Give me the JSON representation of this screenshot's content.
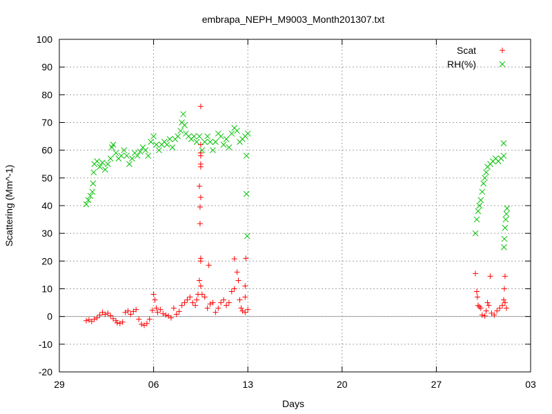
{
  "chart_data": {
    "type": "scatter",
    "title": "embrapa_NEPH_M9003_Month201307.txt",
    "xlabel": "Days",
    "ylabel": "Scattering (Mm^-1)",
    "xlim": [
      -2,
      32
    ],
    "ylim": [
      -20,
      100
    ],
    "x_ticks": [
      {
        "value": -2,
        "label": "29"
      },
      {
        "value": 5,
        "label": "06"
      },
      {
        "value": 12,
        "label": "13"
      },
      {
        "value": 19,
        "label": "20"
      },
      {
        "value": 26,
        "label": "27"
      },
      {
        "value": 33,
        "label": "03"
      }
    ],
    "y_ticks": [
      -20,
      -10,
      0,
      10,
      20,
      30,
      40,
      50,
      60,
      70,
      80,
      90,
      100
    ],
    "grid": true,
    "legend_position": "top-right",
    "series": [
      {
        "name": "Scat",
        "marker": "+",
        "color": "#ff0000",
        "points": [
          [
            0,
            -1.5
          ],
          [
            0.2,
            -1.2
          ],
          [
            0.4,
            -1.8
          ],
          [
            0.6,
            -1
          ],
          [
            0.8,
            -0.5
          ],
          [
            1.0,
            0.5
          ],
          [
            1.2,
            1.5
          ],
          [
            1.4,
            0.8
          ],
          [
            1.6,
            1.2
          ],
          [
            1.8,
            0.3
          ],
          [
            2.0,
            -0.8
          ],
          [
            2.2,
            -1.5
          ],
          [
            2.3,
            -2.3
          ],
          [
            2.5,
            -2.5
          ],
          [
            2.7,
            -2
          ],
          [
            2.9,
            1.5
          ],
          [
            3.1,
            2
          ],
          [
            3.3,
            0.8
          ],
          [
            3.5,
            1.8
          ],
          [
            3.7,
            2.5
          ],
          [
            3.9,
            -1
          ],
          [
            4.1,
            -2.8
          ],
          [
            4.3,
            -3.2
          ],
          [
            4.5,
            -2.5
          ],
          [
            4.7,
            -1
          ],
          [
            4.9,
            2.2
          ],
          [
            5.0,
            8
          ],
          [
            5.1,
            6
          ],
          [
            5.2,
            3
          ],
          [
            5.3,
            1.5
          ],
          [
            5.5,
            2.5
          ],
          [
            5.7,
            1
          ],
          [
            5.9,
            0.5
          ],
          [
            6.1,
            0.2
          ],
          [
            6.3,
            -0.5
          ],
          [
            6.5,
            3
          ],
          [
            6.7,
            0.8
          ],
          [
            6.9,
            1.8
          ],
          [
            7.1,
            4
          ],
          [
            7.3,
            5
          ],
          [
            7.5,
            6
          ],
          [
            7.7,
            7
          ],
          [
            7.9,
            5
          ],
          [
            8.1,
            4
          ],
          [
            8.2,
            6
          ],
          [
            8.3,
            8
          ],
          [
            8.4,
            13
          ],
          [
            8.5,
            11
          ],
          [
            8.6,
            8
          ],
          [
            8.8,
            7
          ],
          [
            9.0,
            3
          ],
          [
            9.2,
            4.5
          ],
          [
            9.4,
            5
          ],
          [
            9.6,
            1.5
          ],
          [
            9.8,
            3
          ],
          [
            10.0,
            5
          ],
          [
            10.2,
            6
          ],
          [
            10.4,
            4
          ],
          [
            10.6,
            5
          ],
          [
            10.8,
            9
          ],
          [
            11.0,
            10
          ],
          [
            11.2,
            16
          ],
          [
            11.3,
            13
          ],
          [
            11.4,
            6
          ],
          [
            11.5,
            3
          ],
          [
            11.6,
            2
          ],
          [
            11.8,
            1.5
          ],
          [
            12.0,
            2.5
          ],
          [
            8.5,
            75.8
          ],
          [
            8.5,
            62
          ],
          [
            8.5,
            59
          ],
          [
            8.5,
            58
          ],
          [
            8.5,
            55
          ],
          [
            8.5,
            54
          ],
          [
            8.4,
            47
          ],
          [
            8.5,
            43
          ],
          [
            8.45,
            39.5
          ],
          [
            8.45,
            33.5
          ],
          [
            8.5,
            21
          ],
          [
            8.5,
            20
          ],
          [
            9.1,
            18.5
          ],
          [
            11.0,
            20.8
          ],
          [
            11.85,
            21
          ],
          [
            11.8,
            11
          ],
          [
            11.8,
            7
          ],
          [
            28.9,
            15.5
          ],
          [
            29.0,
            9
          ],
          [
            29.05,
            7
          ],
          [
            29.1,
            4
          ],
          [
            29.2,
            3.5
          ],
          [
            29.3,
            3
          ],
          [
            29.4,
            0.5
          ],
          [
            29.6,
            0.2
          ],
          [
            29.7,
            2
          ],
          [
            29.8,
            5
          ],
          [
            29.9,
            4
          ],
          [
            30.1,
            1.2
          ],
          [
            30.3,
            0.5
          ],
          [
            30.5,
            2
          ],
          [
            30.7,
            3
          ],
          [
            30.9,
            4
          ],
          [
            31.0,
            6
          ],
          [
            31.1,
            5
          ],
          [
            31.2,
            3
          ],
          [
            30.0,
            14.5
          ],
          [
            31.1,
            14.5
          ],
          [
            31.05,
            10
          ]
        ]
      },
      {
        "name": "RH(%)",
        "marker": "x",
        "color": "#00c000",
        "points": [
          [
            0,
            40.5
          ],
          [
            0.15,
            42
          ],
          [
            0.3,
            43.5
          ],
          [
            0.45,
            45
          ],
          [
            0.5,
            48
          ],
          [
            0.55,
            52
          ],
          [
            0.6,
            55
          ],
          [
            0.8,
            56
          ],
          [
            1.0,
            54
          ],
          [
            1.2,
            55.5
          ],
          [
            1.4,
            53
          ],
          [
            1.6,
            55
          ],
          [
            1.8,
            57
          ],
          [
            1.9,
            61
          ],
          [
            2.0,
            62
          ],
          [
            2.2,
            59
          ],
          [
            2.4,
            57
          ],
          [
            2.6,
            58
          ],
          [
            2.8,
            60
          ],
          [
            3.0,
            58
          ],
          [
            3.2,
            55
          ],
          [
            3.4,
            57
          ],
          [
            3.6,
            59
          ],
          [
            3.8,
            58
          ],
          [
            4.0,
            59.5
          ],
          [
            4.2,
            61
          ],
          [
            4.4,
            60
          ],
          [
            4.6,
            58
          ],
          [
            4.8,
            63
          ],
          [
            5.0,
            65
          ],
          [
            5.2,
            62
          ],
          [
            5.4,
            60
          ],
          [
            5.6,
            62
          ],
          [
            5.8,
            63
          ],
          [
            6.0,
            62
          ],
          [
            6.2,
            64
          ],
          [
            6.4,
            61
          ],
          [
            6.6,
            64
          ],
          [
            6.8,
            65
          ],
          [
            7.0,
            67
          ],
          [
            7.1,
            70
          ],
          [
            7.2,
            73
          ],
          [
            7.3,
            69
          ],
          [
            7.4,
            66
          ],
          [
            7.6,
            65
          ],
          [
            7.8,
            64
          ],
          [
            8.0,
            65
          ],
          [
            8.2,
            63
          ],
          [
            8.4,
            65
          ],
          [
            8.6,
            60
          ],
          [
            8.8,
            63
          ],
          [
            9.0,
            65
          ],
          [
            9.2,
            63
          ],
          [
            9.4,
            60
          ],
          [
            9.6,
            63
          ],
          [
            9.8,
            66
          ],
          [
            10.0,
            65
          ],
          [
            10.2,
            62
          ],
          [
            10.4,
            64
          ],
          [
            10.6,
            61
          ],
          [
            10.8,
            66
          ],
          [
            11.0,
            68
          ],
          [
            11.2,
            67
          ],
          [
            11.4,
            63
          ],
          [
            11.6,
            64
          ],
          [
            11.8,
            65
          ],
          [
            12.0,
            66
          ],
          [
            11.9,
            58
          ],
          [
            11.9,
            44.2
          ],
          [
            11.95,
            29
          ],
          [
            28.9,
            30
          ],
          [
            29.0,
            35
          ],
          [
            29.1,
            38
          ],
          [
            29.2,
            40
          ],
          [
            29.3,
            42
          ],
          [
            29.4,
            45
          ],
          [
            29.5,
            48
          ],
          [
            29.6,
            50
          ],
          [
            29.7,
            52
          ],
          [
            29.8,
            54
          ],
          [
            30.0,
            55
          ],
          [
            30.2,
            56
          ],
          [
            30.4,
            57
          ],
          [
            30.6,
            56
          ],
          [
            30.8,
            57
          ],
          [
            31.0,
            58
          ],
          [
            31.0,
            62.5
          ],
          [
            31.05,
            28
          ],
          [
            31.1,
            32
          ],
          [
            31.15,
            35
          ],
          [
            31.2,
            37
          ],
          [
            31.25,
            39
          ],
          [
            31.02,
            25
          ]
        ]
      }
    ]
  }
}
